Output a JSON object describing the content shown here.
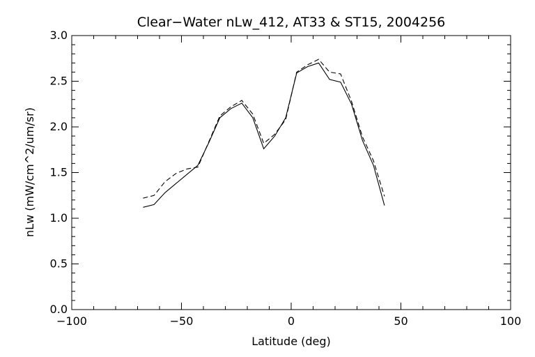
{
  "chart_data": {
    "type": "line",
    "title": "Clear−Water nLw_412, AT33 & ST15, 2004256",
    "xlabel": "Latitude (deg)",
    "ylabel": "nLw (mW/cm^2/um/sr)",
    "xlim": [
      -100,
      100
    ],
    "ylim": [
      0.0,
      3.0
    ],
    "x_ticks": [
      -100,
      -50,
      0,
      50,
      100
    ],
    "x_tick_labels": [
      "−100",
      "−50",
      "0",
      "50",
      "100"
    ],
    "y_ticks": [
      0.0,
      0.5,
      1.0,
      1.5,
      2.0,
      2.5,
      3.0
    ],
    "y_tick_labels": [
      "0.0",
      "0.5",
      "1.0",
      "1.5",
      "2.0",
      "2.5",
      "3.0"
    ],
    "grid": false,
    "series": [
      {
        "style": "solid",
        "color": "#000000",
        "points": [
          [
            -67.5,
            1.12
          ],
          [
            -62.5,
            1.15
          ],
          [
            -57.5,
            1.28
          ],
          [
            -52.5,
            1.38
          ],
          [
            -47.5,
            1.48
          ],
          [
            -42.5,
            1.58
          ],
          [
            -37.5,
            1.83
          ],
          [
            -32.5,
            2.1
          ],
          [
            -27.5,
            2.2
          ],
          [
            -22.5,
            2.26
          ],
          [
            -17.5,
            2.1
          ],
          [
            -12.5,
            1.76
          ],
          [
            -7.5,
            1.9
          ],
          [
            -2.5,
            2.1
          ],
          [
            2.5,
            2.59
          ],
          [
            7.5,
            2.66
          ],
          [
            12.5,
            2.7
          ],
          [
            17.5,
            2.52
          ],
          [
            22.5,
            2.49
          ],
          [
            27.5,
            2.25
          ],
          [
            32.5,
            1.85
          ],
          [
            37.5,
            1.58
          ],
          [
            42.5,
            1.14
          ]
        ]
      },
      {
        "style": "dashed",
        "color": "#000000",
        "points": [
          [
            -67.5,
            1.22
          ],
          [
            -62.5,
            1.25
          ],
          [
            -57.5,
            1.4
          ],
          [
            -52.5,
            1.49
          ],
          [
            -47.5,
            1.54
          ],
          [
            -42.5,
            1.56
          ],
          [
            -37.5,
            1.84
          ],
          [
            -32.5,
            2.12
          ],
          [
            -27.5,
            2.22
          ],
          [
            -22.5,
            2.29
          ],
          [
            -17.5,
            2.14
          ],
          [
            -12.5,
            1.82
          ],
          [
            -7.5,
            1.92
          ],
          [
            -2.5,
            2.08
          ],
          [
            2.5,
            2.6
          ],
          [
            7.5,
            2.68
          ],
          [
            12.5,
            2.74
          ],
          [
            17.5,
            2.6
          ],
          [
            22.5,
            2.58
          ],
          [
            27.5,
            2.28
          ],
          [
            32.5,
            1.89
          ],
          [
            37.5,
            1.63
          ],
          [
            42.5,
            1.24
          ]
        ]
      }
    ]
  }
}
